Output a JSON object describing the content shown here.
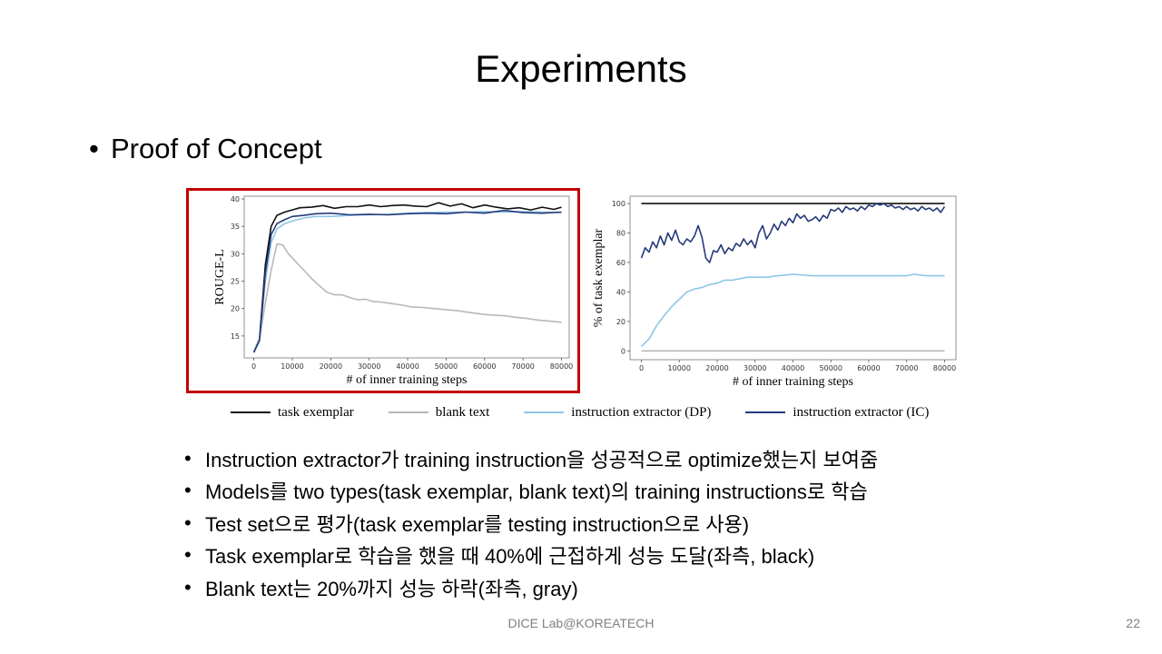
{
  "slide": {
    "title": "Experiments",
    "section_bullet": "•",
    "section": "Proof of Concept",
    "bullet_symbol": "•",
    "bullets": [
      "Instruction extractor가 training instruction을 성공적으로 optimize했는지 보여줌",
      "Models를 two types(task exemplar, blank text)의 training instructions로 학습",
      "Test set으로 평가(task exemplar를 testing instruction으로 사용)",
      "Task exemplar로 학습을 했을 때 40%에 근접하게 성능 도달(좌측, black)",
      "Blank text는 20%까지 성능 하락(좌측, gray)"
    ],
    "footer": "DICE Lab@KOREATECH",
    "page_number": "22",
    "highlight_color": "#c00000"
  },
  "legend": [
    {
      "name": "task exemplar",
      "color": "#111111"
    },
    {
      "name": "blank text",
      "color": "#b8b8b8"
    },
    {
      "name": "instruction extractor (DP)",
      "color": "#8ec6e6"
    },
    {
      "name": "instruction extractor (IC)",
      "color": "#243a7a"
    }
  ],
  "chart_data": [
    {
      "type": "line",
      "xlabel": "# of inner training steps",
      "ylabel": "ROUGE-L",
      "xlim": [
        -2500,
        82000
      ],
      "ylim": [
        11,
        40.5
      ],
      "xticks": [
        0,
        10000,
        20000,
        30000,
        40000,
        50000,
        60000,
        70000,
        80000
      ],
      "yticks": [
        15,
        20,
        25,
        30,
        35,
        40
      ],
      "grid": false,
      "series": [
        {
          "name": "task exemplar",
          "color": "#111111",
          "points": [
            [
              0,
              12
            ],
            [
              1500,
              14.5
            ],
            [
              3000,
              28
            ],
            [
              4500,
              35
            ],
            [
              6000,
              37
            ],
            [
              8000,
              37.6
            ],
            [
              10000,
              38
            ],
            [
              12000,
              38.4
            ],
            [
              15000,
              38.5
            ],
            [
              18000,
              38.8
            ],
            [
              21000,
              38.3
            ],
            [
              24000,
              38.6
            ],
            [
              27000,
              38.6
            ],
            [
              30000,
              38.9
            ],
            [
              33000,
              38.6
            ],
            [
              36000,
              38.8
            ],
            [
              39000,
              38.9
            ],
            [
              42000,
              38.7
            ],
            [
              45000,
              38.6
            ],
            [
              48000,
              39.3
            ],
            [
              51000,
              38.7
            ],
            [
              54000,
              39.1
            ],
            [
              57000,
              38.4
            ],
            [
              60000,
              38.9
            ],
            [
              63000,
              38.5
            ],
            [
              66000,
              38.2
            ],
            [
              69000,
              38.4
            ],
            [
              72000,
              38.0
            ],
            [
              75000,
              38.5
            ],
            [
              78000,
              38.1
            ],
            [
              80000,
              38.5
            ]
          ]
        },
        {
          "name": "blank text",
          "color": "#b8b8b8",
          "points": [
            [
              0,
              12
            ],
            [
              1500,
              14.5
            ],
            [
              3000,
              21
            ],
            [
              4500,
              27
            ],
            [
              6000,
              31.8
            ],
            [
              7500,
              31.6
            ],
            [
              9000,
              30
            ],
            [
              11000,
              28.5
            ],
            [
              13000,
              27
            ],
            [
              15000,
              25.5
            ],
            [
              17000,
              24.2
            ],
            [
              19000,
              23
            ],
            [
              21000,
              22.5
            ],
            [
              23000,
              22.5
            ],
            [
              25000,
              22
            ],
            [
              27000,
              21.6
            ],
            [
              29000,
              21.7
            ],
            [
              31000,
              21.3
            ],
            [
              33000,
              21.2
            ],
            [
              35000,
              21
            ],
            [
              38000,
              20.7
            ],
            [
              41000,
              20.3
            ],
            [
              44000,
              20.2
            ],
            [
              47000,
              20
            ],
            [
              50000,
              19.8
            ],
            [
              53000,
              19.6
            ],
            [
              56000,
              19.3
            ],
            [
              59000,
              19
            ],
            [
              62000,
              18.8
            ],
            [
              65000,
              18.7
            ],
            [
              68000,
              18.4
            ],
            [
              71000,
              18.2
            ],
            [
              74000,
              17.9
            ],
            [
              77000,
              17.7
            ],
            [
              80000,
              17.5
            ]
          ]
        },
        {
          "name": "instruction extractor (DP)",
          "color": "#8ec6e6",
          "points": [
            [
              0,
              12
            ],
            [
              1500,
              14
            ],
            [
              3000,
              25
            ],
            [
              4500,
              32
            ],
            [
              6000,
              34.5
            ],
            [
              8000,
              35.5
            ],
            [
              10000,
              36
            ],
            [
              13000,
              36.5
            ],
            [
              16000,
              36.8
            ],
            [
              20000,
              36.8
            ],
            [
              25000,
              37
            ],
            [
              30000,
              37.1
            ],
            [
              35000,
              37.2
            ],
            [
              40000,
              37.4
            ],
            [
              45000,
              37.5
            ],
            [
              50000,
              37.6
            ],
            [
              55000,
              37.6
            ],
            [
              60000,
              37.7
            ],
            [
              65000,
              37.6
            ],
            [
              70000,
              37.7
            ],
            [
              75000,
              37.6
            ],
            [
              80000,
              37.5
            ]
          ]
        },
        {
          "name": "instruction extractor (IC)",
          "color": "#243a7a",
          "points": [
            [
              0,
              12
            ],
            [
              1500,
              14.3
            ],
            [
              3000,
              26.5
            ],
            [
              4500,
              33.5
            ],
            [
              6000,
              35.5
            ],
            [
              8000,
              36.2
            ],
            [
              10000,
              36.8
            ],
            [
              13000,
              37
            ],
            [
              16000,
              37.3
            ],
            [
              20000,
              37.4
            ],
            [
              25000,
              37.1
            ],
            [
              30000,
              37.2
            ],
            [
              35000,
              37.1
            ],
            [
              40000,
              37.3
            ],
            [
              45000,
              37.4
            ],
            [
              50000,
              37.3
            ],
            [
              55000,
              37.6
            ],
            [
              60000,
              37.4
            ],
            [
              65000,
              37.9
            ],
            [
              70000,
              37.5
            ],
            [
              75000,
              37.4
            ],
            [
              80000,
              37.6
            ]
          ]
        }
      ]
    },
    {
      "type": "line",
      "xlabel": "# of inner training steps",
      "ylabel": "% of task exemplar",
      "xlim": [
        -3000,
        83000
      ],
      "ylim": [
        -6,
        105
      ],
      "xticks": [
        0,
        10000,
        20000,
        30000,
        40000,
        50000,
        60000,
        70000,
        80000
      ],
      "yticks": [
        0,
        20,
        40,
        60,
        80,
        100
      ],
      "grid": false,
      "series": [
        {
          "name": "task exemplar",
          "color": "#111111",
          "points": [
            [
              0,
              100
            ],
            [
              80000,
              100
            ]
          ]
        },
        {
          "name": "blank text",
          "color": "#b8b8b8",
          "points": [
            [
              0,
              0
            ],
            [
              80000,
              0
            ]
          ]
        },
        {
          "name": "instruction extractor (DP)",
          "color": "#8ec6e6",
          "points": [
            [
              0,
              3
            ],
            [
              2000,
              8
            ],
            [
              4000,
              17
            ],
            [
              6000,
              24
            ],
            [
              8000,
              30
            ],
            [
              10000,
              35
            ],
            [
              12000,
              40
            ],
            [
              14000,
              42
            ],
            [
              16000,
              43
            ],
            [
              18000,
              45
            ],
            [
              20000,
              46
            ],
            [
              22000,
              48
            ],
            [
              24000,
              48
            ],
            [
              26000,
              49
            ],
            [
              28000,
              50
            ],
            [
              30000,
              50
            ],
            [
              33000,
              50
            ],
            [
              36000,
              51
            ],
            [
              40000,
              52
            ],
            [
              45000,
              51
            ],
            [
              50000,
              51
            ],
            [
              55000,
              51
            ],
            [
              60000,
              51
            ],
            [
              65000,
              51
            ],
            [
              70000,
              51
            ],
            [
              72000,
              52
            ],
            [
              75000,
              51
            ],
            [
              80000,
              51
            ]
          ]
        },
        {
          "name": "instruction extractor (IC)",
          "color": "#243a7a",
          "points": [
            [
              0,
              63
            ],
            [
              1000,
              70
            ],
            [
              2000,
              67
            ],
            [
              3000,
              74
            ],
            [
              4000,
              70
            ],
            [
              5000,
              78
            ],
            [
              6000,
              72
            ],
            [
              7000,
              80
            ],
            [
              8000,
              75
            ],
            [
              9000,
              82
            ],
            [
              10000,
              74
            ],
            [
              11000,
              72
            ],
            [
              12000,
              76
            ],
            [
              13000,
              74
            ],
            [
              14000,
              78
            ],
            [
              15000,
              85
            ],
            [
              16000,
              77
            ],
            [
              17000,
              63
            ],
            [
              18000,
              60
            ],
            [
              19000,
              68
            ],
            [
              20000,
              67
            ],
            [
              21000,
              72
            ],
            [
              22000,
              66
            ],
            [
              23000,
              70
            ],
            [
              24000,
              68
            ],
            [
              25000,
              73
            ],
            [
              26000,
              71
            ],
            [
              27000,
              76
            ],
            [
              28000,
              72
            ],
            [
              29000,
              75
            ],
            [
              30000,
              70
            ],
            [
              31000,
              80
            ],
            [
              32000,
              85
            ],
            [
              33000,
              76
            ],
            [
              34000,
              80
            ],
            [
              35000,
              86
            ],
            [
              36000,
              82
            ],
            [
              37000,
              88
            ],
            [
              38000,
              85
            ],
            [
              39000,
              90
            ],
            [
              40000,
              87
            ],
            [
              41000,
              93
            ],
            [
              42000,
              90
            ],
            [
              43000,
              92
            ],
            [
              44000,
              88
            ],
            [
              45000,
              89
            ],
            [
              46000,
              91
            ],
            [
              47000,
              88
            ],
            [
              48000,
              92
            ],
            [
              49000,
              90
            ],
            [
              50000,
              96
            ],
            [
              51000,
              95
            ],
            [
              52000,
              97
            ],
            [
              53000,
              94
            ],
            [
              54000,
              98
            ],
            [
              55000,
              96
            ],
            [
              56000,
              97
            ],
            [
              57000,
              95
            ],
            [
              58000,
              98
            ],
            [
              59000,
              96
            ],
            [
              60000,
              99
            ],
            [
              61000,
              98
            ],
            [
              62000,
              100
            ],
            [
              63000,
              99
            ],
            [
              64000,
              100
            ],
            [
              65000,
              98
            ],
            [
              66000,
              99
            ],
            [
              67000,
              97
            ],
            [
              68000,
              98
            ],
            [
              69000,
              96
            ],
            [
              70000,
              98
            ],
            [
              71000,
              96
            ],
            [
              72000,
              97
            ],
            [
              73000,
              95
            ],
            [
              74000,
              98
            ],
            [
              75000,
              96
            ],
            [
              76000,
              97
            ],
            [
              77000,
              95
            ],
            [
              78000,
              97
            ],
            [
              79000,
              94
            ],
            [
              80000,
              98
            ]
          ]
        }
      ]
    }
  ]
}
